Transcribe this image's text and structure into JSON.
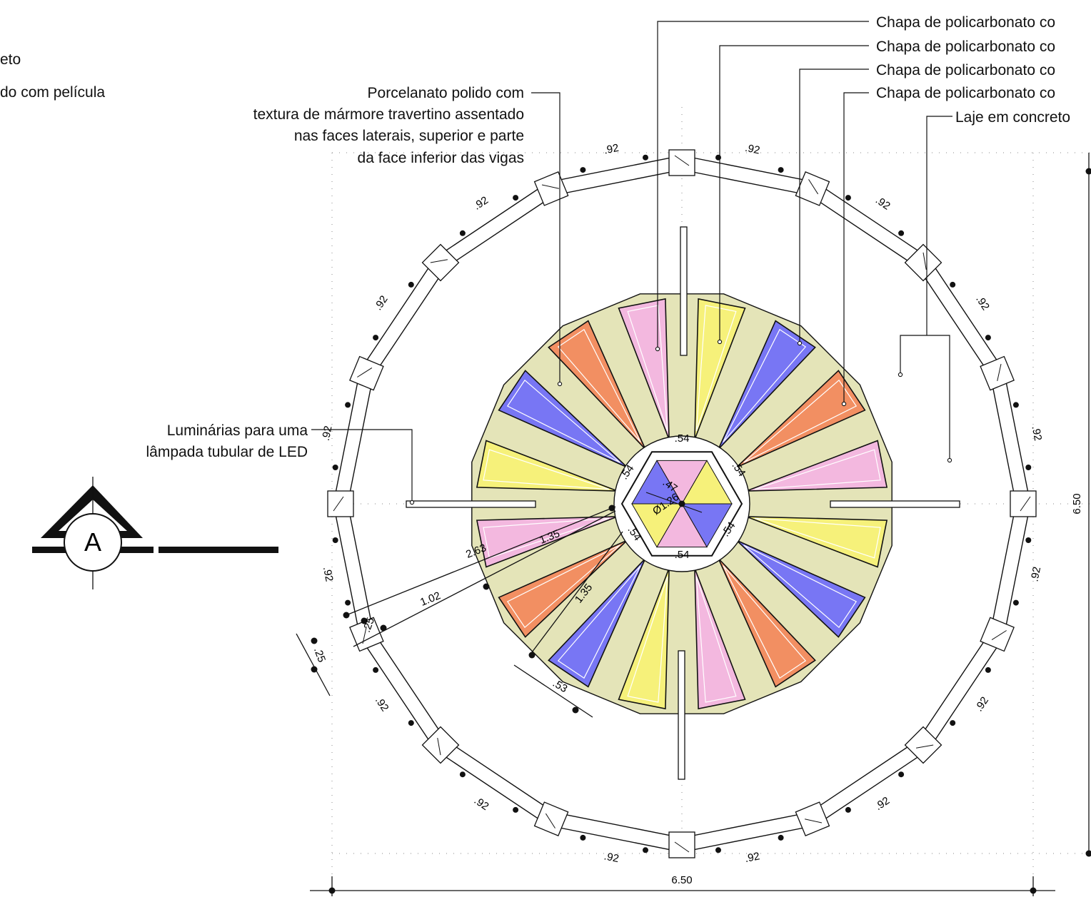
{
  "labels": {
    "top_left_line1": "eto",
    "top_left_line2": "do com película",
    "porcelanato": [
      "Porcelanato polido com",
      "textura de mármore travertino assentado",
      "nas faces laterais, superior e parte",
      "da face inferior das vigas"
    ],
    "luminarias": [
      "Luminárias para uma",
      "lâmpada tubular de LED"
    ],
    "chapa_1": "Chapa de policarbonato co",
    "chapa_2": "Chapa de policarbonato co",
    "chapa_3": "Chapa de policarbonato co",
    "chapa_4": "Chapa de policarbonato co",
    "laje": "Laje em concreto"
  },
  "section_marker": {
    "letter": "A"
  },
  "dimensions": {
    "outer_segment": ".92",
    "overall_width": "6.50",
    "overall_height": "6.50",
    "hexagon_side": ".54",
    "inner_diameter": "Ø1.26",
    "inner_radius": ".47",
    "radius_total": "2.63",
    "beam_1": "1.35",
    "beam_2": "1.35",
    "offset": "1.02",
    "pillar_1": ".25",
    "pillar_2": ".25",
    "beam_width": ".53"
  },
  "colors": {
    "pink": "#f3b8df",
    "yellow": "#f6f17a",
    "blue": "#7876f4",
    "orange": "#f28f62",
    "beam": "#e4e4b8",
    "line": "#111111"
  }
}
